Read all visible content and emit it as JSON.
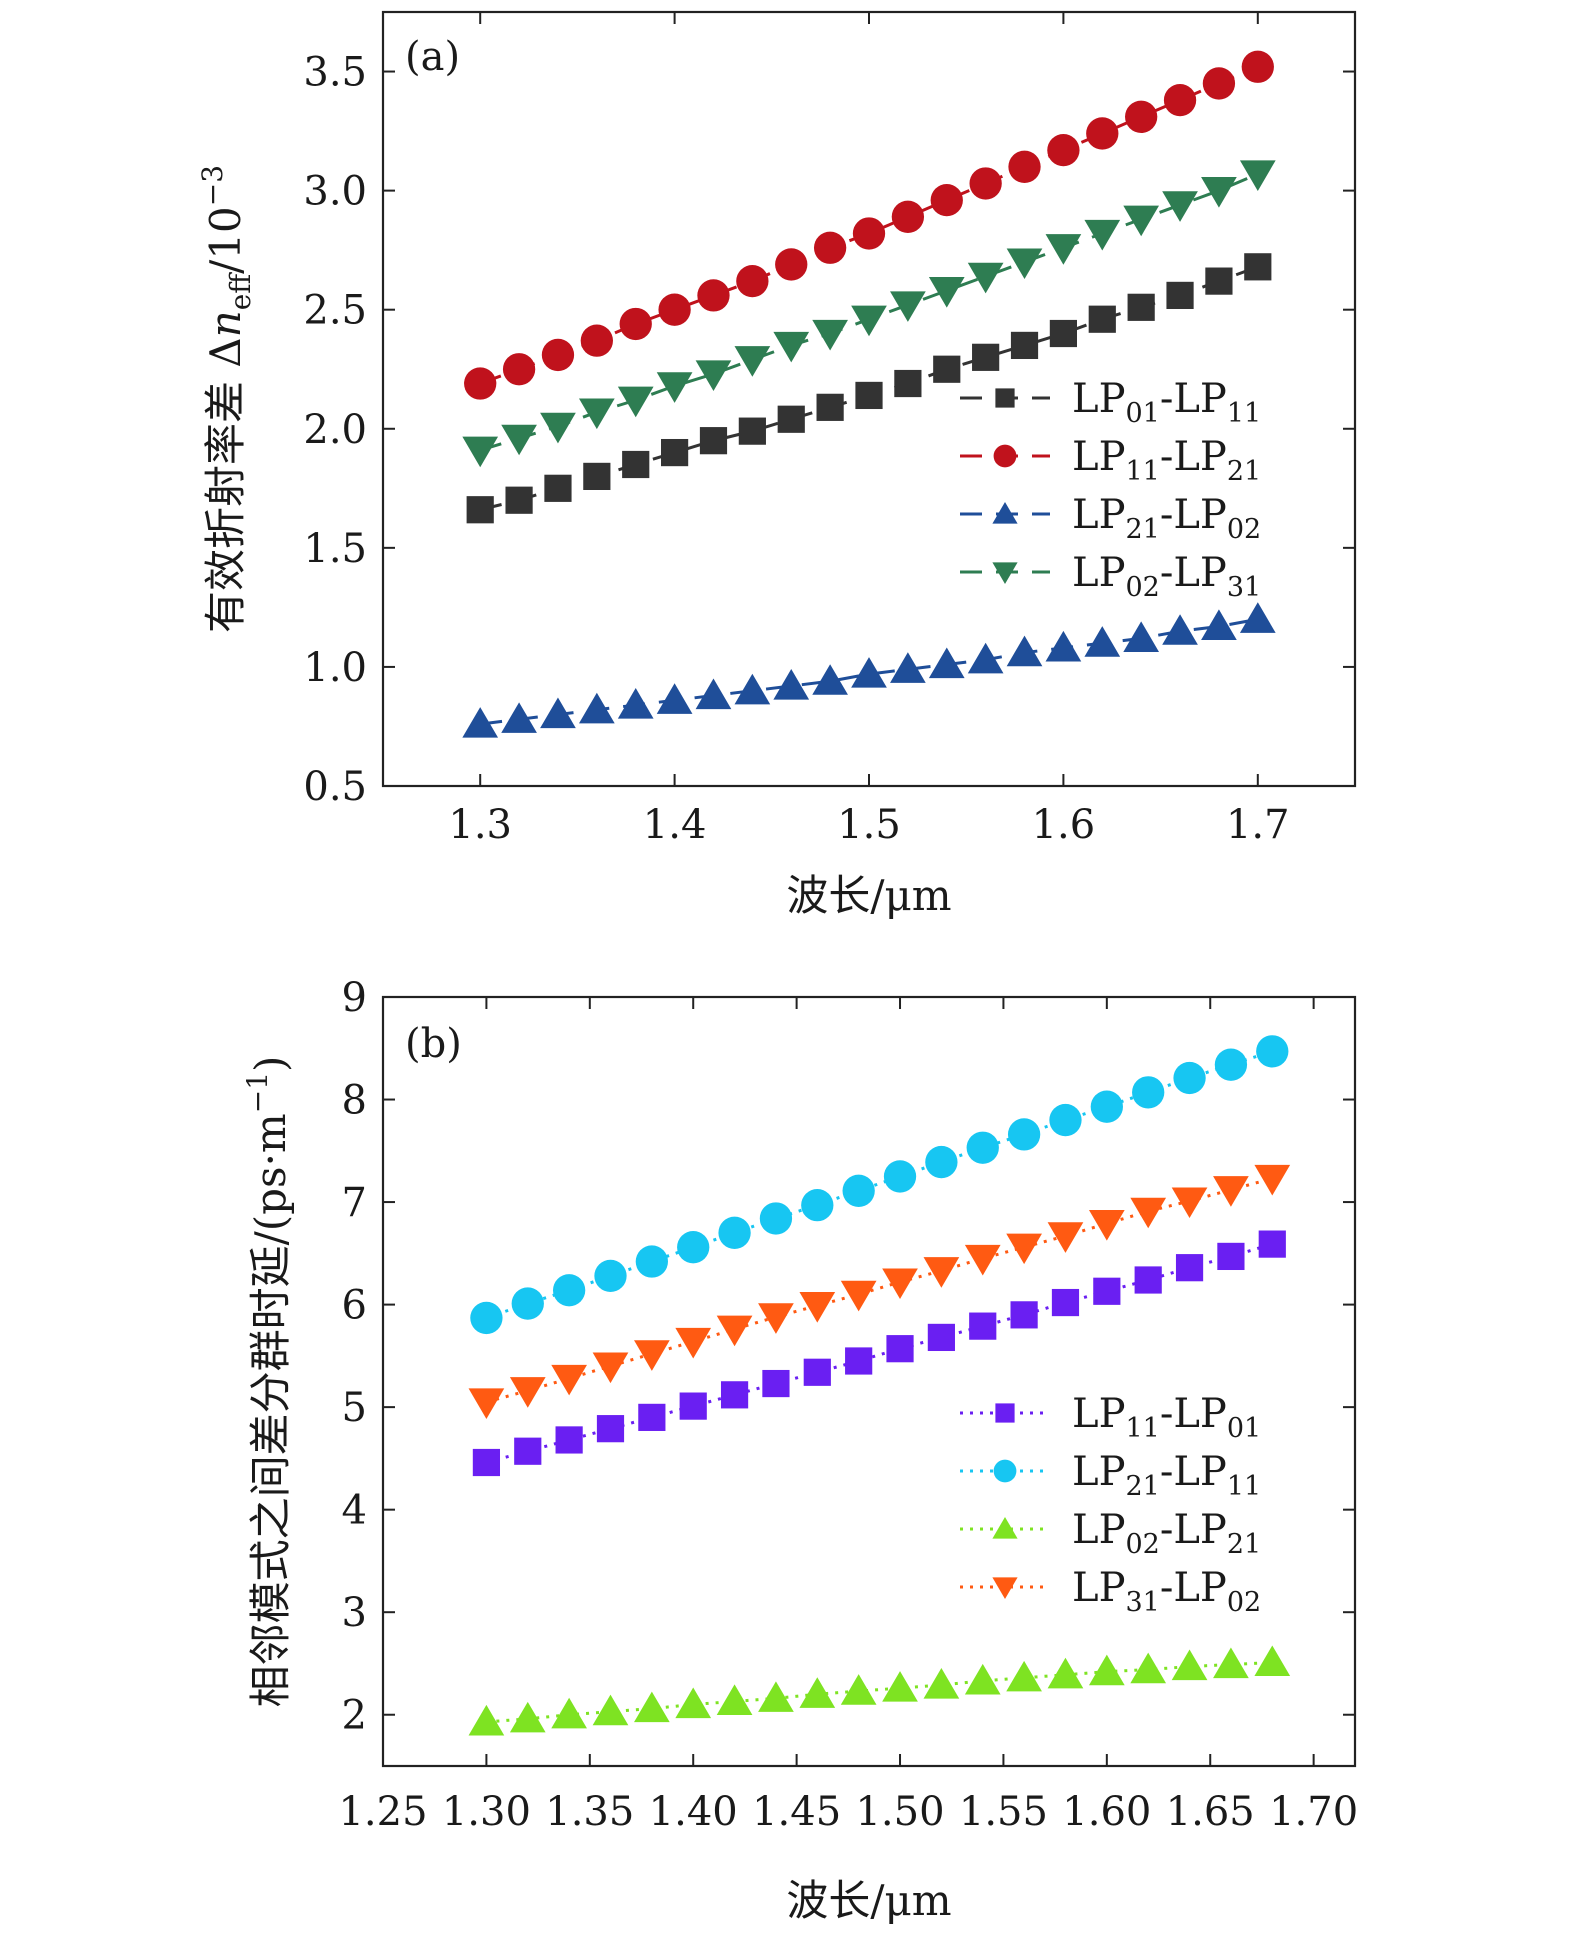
{
  "chart_data": [
    {
      "type": "line",
      "panel_label": "(a)",
      "xlabel": "波长/μm",
      "ylabel": "有效折射率差 Δn_eff/10^−3",
      "ylabel_parts": {
        "prefix": "有效折射率差 Δ",
        "n": "n",
        "sub": "eff",
        "after": "/10",
        "exp": "−3"
      },
      "xlim": [
        1.25,
        1.75
      ],
      "ylim": [
        0.5,
        3.75
      ],
      "xticks": [
        1.3,
        1.4,
        1.5,
        1.6,
        1.7
      ],
      "xtick_labels": [
        "1.3",
        "1.4",
        "1.5",
        "1.6",
        "1.7"
      ],
      "yticks": [
        0.5,
        1.0,
        1.5,
        2.0,
        2.5,
        3.0,
        3.5
      ],
      "ytick_labels": [
        "0.5",
        "1.0",
        "1.5",
        "2.0",
        "2.5",
        "3.0",
        "3.5"
      ],
      "line_style": "dashed",
      "legend_position": "right",
      "x": [
        1.3,
        1.32,
        1.34,
        1.36,
        1.38,
        1.4,
        1.42,
        1.44,
        1.46,
        1.48,
        1.5,
        1.52,
        1.54,
        1.56,
        1.58,
        1.6,
        1.62,
        1.64,
        1.66,
        1.68,
        1.7
      ],
      "series": [
        {
          "name": "LP01-LP11",
          "label": {
            "a": "LP",
            "a_sub": "01",
            "sep": "-",
            "b": "LP",
            "b_sub": "11"
          },
          "color": "#333333",
          "marker": "square",
          "values": [
            1.66,
            1.7,
            1.75,
            1.8,
            1.85,
            1.9,
            1.95,
            1.99,
            2.04,
            2.09,
            2.14,
            2.19,
            2.25,
            2.3,
            2.35,
            2.4,
            2.46,
            2.51,
            2.56,
            2.62,
            2.68
          ]
        },
        {
          "name": "LP11-LP21",
          "label": {
            "a": "LP",
            "a_sub": "11",
            "sep": "-",
            "b": "LP",
            "b_sub": "21"
          },
          "color": "#c0121c",
          "marker": "circle",
          "values": [
            2.19,
            2.25,
            2.31,
            2.37,
            2.44,
            2.5,
            2.56,
            2.62,
            2.69,
            2.76,
            2.82,
            2.89,
            2.96,
            3.03,
            3.1,
            3.17,
            3.24,
            3.31,
            3.38,
            3.45,
            3.52
          ]
        },
        {
          "name": "LP21-LP02",
          "label": {
            "a": "LP",
            "a_sub": "21",
            "sep": "-",
            "b": "LP",
            "b_sub": "02"
          },
          "color": "#1f4e99",
          "marker": "triangle-up",
          "values": [
            0.76,
            0.78,
            0.8,
            0.82,
            0.84,
            0.86,
            0.88,
            0.9,
            0.92,
            0.94,
            0.97,
            0.99,
            1.01,
            1.03,
            1.06,
            1.08,
            1.1,
            1.12,
            1.15,
            1.17,
            1.2
          ]
        },
        {
          "name": "LP02-LP31",
          "label": {
            "a": "LP",
            "a_sub": "02",
            "sep": "-",
            "b": "LP",
            "b_sub": "31"
          },
          "color": "#2e7d52",
          "marker": "triangle-down",
          "values": [
            1.91,
            1.96,
            2.01,
            2.07,
            2.12,
            2.18,
            2.23,
            2.29,
            2.35,
            2.4,
            2.46,
            2.52,
            2.58,
            2.64,
            2.7,
            2.76,
            2.82,
            2.88,
            2.94,
            3.0,
            3.07
          ]
        }
      ]
    },
    {
      "type": "line",
      "panel_label": "(b)",
      "xlabel": "波长/μm",
      "ylabel": "相邻模式之间差分群时延/(ps·m^−1)",
      "ylabel_parts": {
        "prefix": "相邻模式之间差分群时延/(ps·m",
        "exp": "−1",
        "after": ")"
      },
      "xlim": [
        1.25,
        1.72
      ],
      "ylim": [
        1.5,
        9.0
      ],
      "xticks": [
        1.25,
        1.3,
        1.35,
        1.4,
        1.45,
        1.5,
        1.55,
        1.6,
        1.65,
        1.7
      ],
      "xtick_labels": [
        "1.25",
        "1.30",
        "1.35",
        "1.40",
        "1.45",
        "1.50",
        "1.55",
        "1.60",
        "1.65",
        "1.70"
      ],
      "yticks": [
        2,
        3,
        4,
        5,
        6,
        7,
        8,
        9
      ],
      "ytick_labels": [
        "2",
        "3",
        "4",
        "5",
        "6",
        "7",
        "8",
        "9"
      ],
      "line_style": "dotted",
      "legend_position": "right",
      "x": [
        1.3,
        1.32,
        1.34,
        1.36,
        1.38,
        1.4,
        1.42,
        1.44,
        1.46,
        1.48,
        1.5,
        1.52,
        1.54,
        1.56,
        1.58,
        1.6,
        1.62,
        1.64,
        1.66,
        1.68
      ],
      "series": [
        {
          "name": "LP11-LP01",
          "label": {
            "a": "LP",
            "a_sub": "11",
            "sep": "-",
            "b": "LP",
            "b_sub": "01"
          },
          "color": "#6a1ff2",
          "marker": "square",
          "values": [
            4.46,
            4.57,
            4.68,
            4.79,
            4.9,
            5.01,
            5.12,
            5.23,
            5.34,
            5.45,
            5.57,
            5.68,
            5.79,
            5.9,
            6.02,
            6.13,
            6.24,
            6.36,
            6.47,
            6.59
          ]
        },
        {
          "name": "LP21-LP11",
          "label": {
            "a": "LP",
            "a_sub": "21",
            "sep": "-",
            "b": "LP",
            "b_sub": "11"
          },
          "color": "#17c6f2",
          "marker": "circle",
          "values": [
            5.87,
            6.01,
            6.14,
            6.28,
            6.42,
            6.56,
            6.7,
            6.84,
            6.97,
            7.11,
            7.25,
            7.39,
            7.53,
            7.66,
            7.8,
            7.93,
            8.07,
            8.21,
            8.34,
            8.47
          ]
        },
        {
          "name": "LP02-LP21",
          "label": {
            "a": "LP",
            "a_sub": "02",
            "sep": "-",
            "b": "LP",
            "b_sub": "21"
          },
          "color": "#7ee322",
          "marker": "triangle-up",
          "values": [
            1.93,
            1.96,
            2.0,
            2.03,
            2.06,
            2.1,
            2.13,
            2.16,
            2.2,
            2.23,
            2.26,
            2.29,
            2.33,
            2.36,
            2.39,
            2.42,
            2.44,
            2.47,
            2.49,
            2.51
          ]
        },
        {
          "name": "LP31-LP02",
          "label": {
            "a": "LP",
            "a_sub": "31",
            "sep": "-",
            "b": "LP",
            "b_sub": "02"
          },
          "color": "#ff5a12",
          "marker": "triangle-down",
          "values": [
            5.05,
            5.16,
            5.28,
            5.4,
            5.52,
            5.64,
            5.76,
            5.88,
            5.99,
            6.1,
            6.22,
            6.33,
            6.45,
            6.56,
            6.67,
            6.79,
            6.91,
            7.01,
            7.12,
            7.23
          ]
        }
      ]
    }
  ]
}
